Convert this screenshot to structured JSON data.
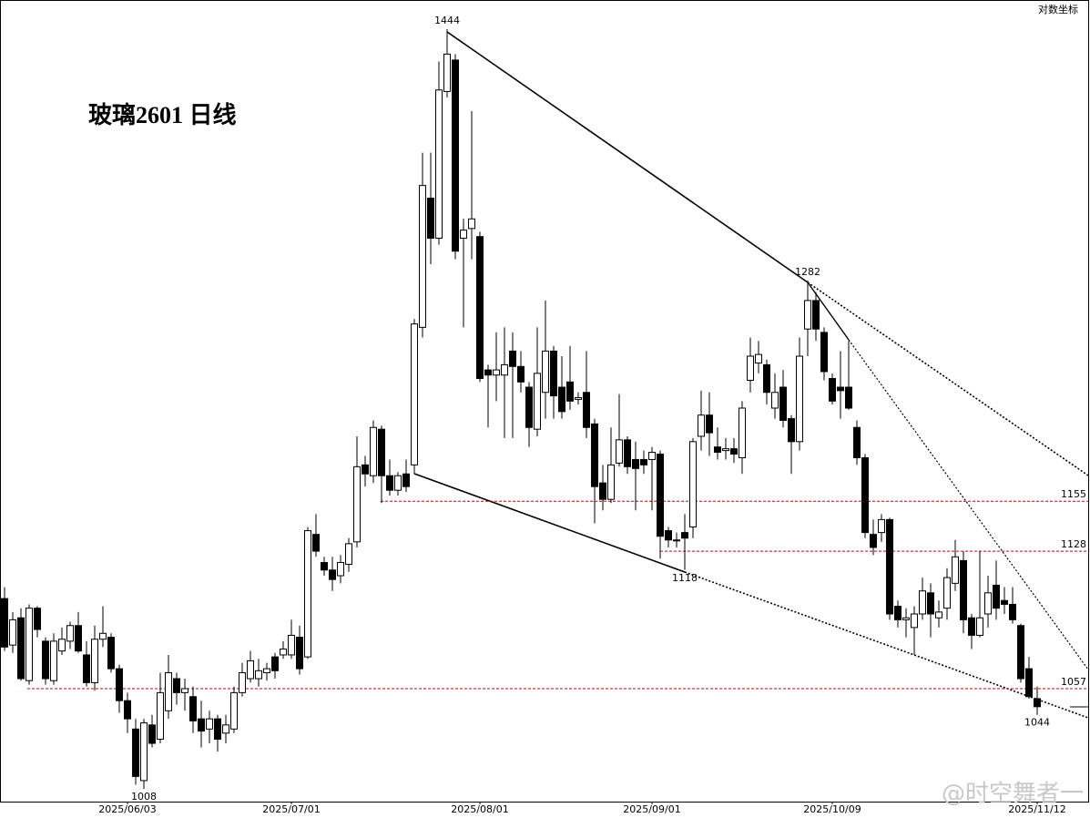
{
  "chart_data": {
    "type": "candlestick",
    "title": "玻璃2601 日线",
    "scale_label": "对数坐标",
    "watermark": "@时空舞者一",
    "log_scale": true,
    "ylim": [
      1002,
      1464
    ],
    "up_color": "#ffffff",
    "down_color": "#000000",
    "line_color": "#000000",
    "hline_color": "#cc0000",
    "categories": [
      null,
      null,
      null,
      null,
      null,
      null,
      null,
      null,
      null,
      null,
      null,
      null,
      null,
      null,
      null,
      "2025/06/03",
      null,
      null,
      null,
      null,
      null,
      null,
      null,
      null,
      null,
      null,
      null,
      null,
      null,
      null,
      null,
      null,
      null,
      null,
      null,
      "2025/07/01",
      null,
      null,
      null,
      null,
      null,
      null,
      null,
      null,
      null,
      null,
      null,
      null,
      null,
      null,
      null,
      null,
      null,
      null,
      null,
      null,
      null,
      null,
      "2025/08/01",
      null,
      null,
      null,
      null,
      null,
      null,
      null,
      null,
      null,
      null,
      null,
      null,
      null,
      null,
      null,
      null,
      null,
      null,
      null,
      null,
      "2025/09/01",
      null,
      null,
      null,
      null,
      null,
      null,
      null,
      null,
      null,
      null,
      null,
      null,
      null,
      null,
      null,
      null,
      null,
      null,
      null,
      null,
      null,
      "2025/10/09",
      null,
      null,
      null,
      null,
      null,
      null,
      null,
      null,
      null,
      null,
      null,
      null,
      null,
      null,
      null,
      null,
      null,
      null,
      null,
      null,
      null,
      null,
      null,
      null,
      "2025/11/12"
    ],
    "open": [
      1103,
      1079,
      1093,
      1061,
      1098,
      1081,
      1061,
      1076,
      1081,
      1089,
      1074,
      1060,
      1082,
      1083,
      1067,
      1051,
      1037,
      1012,
      1039,
      1032,
      1046,
      1062,
      1055,
      1053,
      1042,
      1037,
      1042,
      1035,
      1037,
      1055,
      1062,
      1062,
      1065,
      1073,
      1074,
      1074,
      1083,
      1073,
      1137,
      1122,
      1118,
      1115,
      1121,
      1133,
      1175,
      1169,
      1195,
      1169,
      1161,
      1170,
      1175,
      1254,
      1333,
      1308,
      1402,
      1423,
      1308,
      1314,
      1309,
      1229,
      1226,
      1226,
      1240,
      1231,
      1219,
      1195,
      1216,
      1240,
      1219,
      1222,
      1212,
      1216,
      1198,
      1165,
      1156,
      1176,
      1189,
      1178,
      1178,
      1178,
      1181,
      1139,
      1134,
      1138,
      1141,
      1191,
      1203,
      1185,
      1183,
      1184,
      1179,
      1223,
      1233,
      1232,
      1207,
      1219,
      1201,
      1188,
      1253,
      1270,
      1251,
      1224,
      1219,
      1219,
      1196,
      1179,
      1137,
      1138,
      1145,
      1099,
      1092,
      1088,
      1095,
      1106,
      1093,
      1098,
      1111,
      1123,
      1093,
      1084,
      1095,
      1110,
      1102,
      1100,
      1089,
      1067,
      1052
    ],
    "high": [
      1109,
      1096,
      1098,
      1100,
      1099,
      1083,
      1085,
      1088,
      1091,
      1096,
      1081,
      1089,
      1099,
      1085,
      1069,
      1055,
      1042,
      1042,
      1044,
      1065,
      1074,
      1065,
      1062,
      1058,
      1051,
      1046,
      1044,
      1044,
      1058,
      1070,
      1076,
      1072,
      1070,
      1075,
      1081,
      1092,
      1089,
      1141,
      1148,
      1125,
      1125,
      1126,
      1135,
      1191,
      1180,
      1200,
      1197,
      1178,
      1171,
      1178,
      1259,
      1362,
      1362,
      1422,
      1444,
      1427,
      1320,
      1389,
      1312,
      1232,
      1251,
      1254,
      1251,
      1240,
      1222,
      1254,
      1270,
      1243,
      1237,
      1243,
      1216,
      1240,
      1201,
      1175,
      1196,
      1215,
      1191,
      1188,
      1183,
      1185,
      1183,
      1141,
      1138,
      1148,
      1190,
      1217,
      1216,
      1196,
      1190,
      1190,
      1211,
      1248,
      1246,
      1235,
      1227,
      1229,
      1203,
      1248,
      1282,
      1275,
      1254,
      1227,
      1240,
      1246,
      1200,
      1181,
      1145,
      1148,
      1146,
      1102,
      1098,
      1099,
      1114,
      1111,
      1102,
      1119,
      1134,
      1128,
      1095,
      1128,
      1115,
      1123,
      1109,
      1109,
      1090,
      1073,
      1058
    ],
    "low": [
      1076,
      1075,
      1061,
      1059,
      1083,
      1059,
      1059,
      1074,
      1077,
      1075,
      1058,
      1056,
      1078,
      1065,
      1045,
      1035,
      1010,
      1008,
      1028,
      1030,
      1042,
      1049,
      1046,
      1035,
      1028,
      1030,
      1026,
      1030,
      1035,
      1053,
      1060,
      1058,
      1061,
      1062,
      1072,
      1072,
      1064,
      1072,
      1125,
      1115,
      1107,
      1111,
      1117,
      1130,
      1163,
      1165,
      1154,
      1158,
      1158,
      1160,
      1170,
      1248,
      1292,
      1304,
      1398,
      1295,
      1254,
      1295,
      1222,
      1196,
      1211,
      1190,
      1190,
      1216,
      1185,
      1191,
      1201,
      1201,
      1201,
      1206,
      1209,
      1190,
      1143,
      1150,
      1154,
      1174,
      1170,
      1150,
      1170,
      1150,
      1124,
      1130,
      1130,
      1118,
      1135,
      1183,
      1180,
      1178,
      1178,
      1176,
      1170,
      1216,
      1227,
      1209,
      1201,
      1196,
      1170,
      1183,
      1237,
      1246,
      1223,
      1209,
      1201,
      1206,
      1175,
      1135,
      1126,
      1133,
      1092,
      1088,
      1083,
      1074,
      1092,
      1083,
      1088,
      1092,
      1107,
      1085,
      1077,
      1083,
      1088,
      1092,
      1095,
      1090,
      1060,
      1052,
      1044
    ],
    "close": [
      1078,
      1092,
      1062,
      1098,
      1087,
      1062,
      1081,
      1082,
      1089,
      1076,
      1060,
      1082,
      1085,
      1067,
      1051,
      1042,
      1014,
      1040,
      1030,
      1055,
      1065,
      1055,
      1057,
      1041,
      1036,
      1042,
      1032,
      1039,
      1055,
      1065,
      1071,
      1066,
      1067,
      1066,
      1077,
      1084,
      1067,
      1139,
      1128,
      1118,
      1113,
      1122,
      1132,
      1174,
      1170,
      1196,
      1169,
      1161,
      1169,
      1163,
      1256,
      1341,
      1308,
      1403,
      1427,
      1300,
      1313,
      1320,
      1224,
      1226,
      1229,
      1232,
      1231,
      1222,
      1196,
      1227,
      1240,
      1214,
      1205,
      1211,
      1213,
      1196,
      1163,
      1156,
      1175,
      1189,
      1174,
      1173,
      1175,
      1182,
      1136,
      1134,
      1134,
      1135,
      1188,
      1203,
      1193,
      1182,
      1184,
      1181,
      1207,
      1237,
      1238,
      1216,
      1216,
      1200,
      1188,
      1237,
      1270,
      1253,
      1228,
      1211,
      1217,
      1207,
      1179,
      1138,
      1130,
      1145,
      1095,
      1092,
      1093,
      1095,
      1107,
      1095,
      1096,
      1114,
      1125,
      1092,
      1084,
      1093,
      1106,
      1098,
      1100,
      1092,
      1062,
      1053,
      1048
    ],
    "hlines": [
      1155,
      1128,
      1057
    ],
    "annotations": [
      1444,
      1282,
      1118,
      1008,
      1044
    ]
  }
}
